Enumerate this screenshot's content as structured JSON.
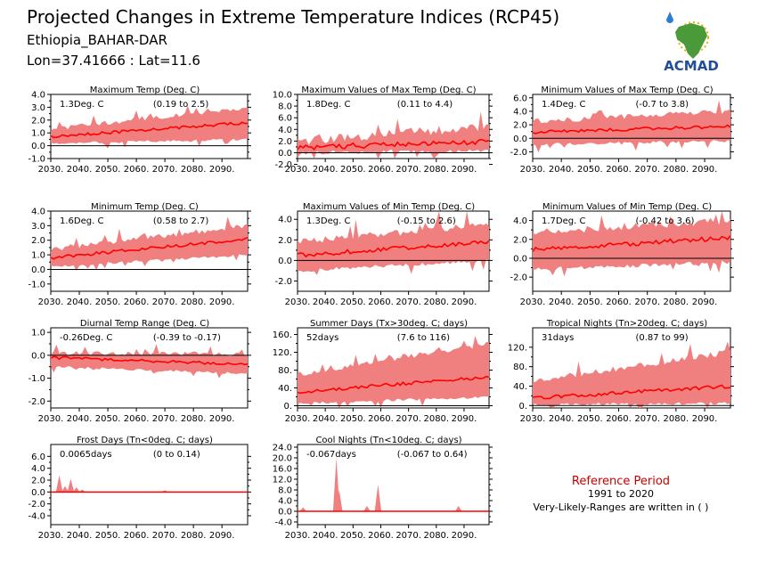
{
  "header": {
    "title": "Projected Changes in Extreme Temperature Indices (RCP45)",
    "location": "Ethiopia_BAHAR-DAR",
    "coords": "Lon=37.41666 : Lat=11.6"
  },
  "logo": {
    "text": "ACMAD",
    "colors": {
      "africa": "#4a9a3a",
      "text": "#1f4e9a",
      "sun": "#e8b000",
      "drop": "#2a7fd0"
    }
  },
  "footer": {
    "reference_label": "Reference Period",
    "reference_years": "1991 to 2020",
    "ranges_note": "Very-Likely-Ranges are written in ( )"
  },
  "colors": {
    "band": "#f08080",
    "median": "#ff0000",
    "zero": "#000000",
    "reference": "#cc0000"
  },
  "chart_data": [
    {
      "type": "area",
      "title": "Maximum Temp (Deg. C)",
      "change": "1.3Deg. C",
      "range": "(0.19 to 2.5)",
      "x": [
        2030,
        2099
      ],
      "xticks": [
        "2030.",
        "2040.",
        "2050.",
        "2060.",
        "2070.",
        "2080.",
        "2090."
      ],
      "ylim": [
        -1.0,
        4.0
      ],
      "yticks": [
        "4.0",
        "3.0",
        "2.0",
        "1.0",
        "0.0",
        "-1.0"
      ],
      "ytick_values": [
        4,
        3,
        2,
        1,
        0,
        -1
      ],
      "median_start": 0.7,
      "median_end": 1.8,
      "band_low_start": 0.2,
      "band_low_end": 0.5,
      "band_high_start": 1.3,
      "band_high_end": 3.0,
      "noise": 0.35
    },
    {
      "type": "area",
      "title": "Maximum Values of Max Temp (Deg. C)",
      "change": "1.8Deg. C",
      "range": "(0.11 to 4.4)",
      "x": [
        2030,
        2099
      ],
      "xticks": [
        "2030.",
        "2040.",
        "2050.",
        "2060.",
        "2070.",
        "2080.",
        "2090."
      ],
      "ylim": [
        -1.0,
        10.0
      ],
      "yticks": [
        "10.0",
        "8.0",
        "6.0",
        "4.0",
        "2.0",
        "0.0",
        "-2.0"
      ],
      "ytick_values": [
        10,
        8,
        6,
        4,
        2,
        0,
        -2
      ],
      "median_start": 0.9,
      "median_end": 2.0,
      "band_low_start": 0.0,
      "band_low_end": 0.3,
      "band_high_start": 2.0,
      "band_high_end": 4.5,
      "noise": 1.6
    },
    {
      "type": "area",
      "title": "Minimum Values of Max Temp (Deg. C)",
      "change": "1.4Deg. C",
      "range": "(-0.7 to 3.8)",
      "x": [
        2030,
        2099
      ],
      "xticks": [
        "2030.",
        "2040.",
        "2050.",
        "2060.",
        "2070.",
        "2080.",
        "2090."
      ],
      "ylim": [
        -3.0,
        6.5
      ],
      "yticks": [
        "6.0",
        "4.0",
        "2.0",
        "0.0",
        "-2.0"
      ],
      "ytick_values": [
        6,
        4,
        2,
        0,
        -2
      ],
      "median_start": 0.9,
      "median_end": 1.8,
      "band_low_start": -0.9,
      "band_low_end": -0.4,
      "band_high_start": 2.5,
      "band_high_end": 4.0,
      "noise": 0.8
    },
    {
      "type": "area",
      "title": "Minimum Temp (Deg. C)",
      "change": "1.6Deg. C",
      "range": "(0.58 to 2.7)",
      "x": [
        2030,
        2099
      ],
      "xticks": [
        "2030.",
        "2040.",
        "2050.",
        "2060.",
        "2070.",
        "2080.",
        "2090."
      ],
      "ylim": [
        -1.5,
        4.0
      ],
      "yticks": [
        "4.0",
        "3.0",
        "2.0",
        "1.0",
        "0.0",
        "-1.0"
      ],
      "ytick_values": [
        4,
        3,
        2,
        1,
        0,
        -1
      ],
      "median_start": 0.8,
      "median_end": 2.1,
      "band_low_start": 0.2,
      "band_low_end": 1.0,
      "band_high_start": 1.4,
      "band_high_end": 3.0,
      "noise": 0.35
    },
    {
      "type": "area",
      "title": "Maximum Values of Min Temp (Deg. C)",
      "change": "1.3Deg. C",
      "range": "(-0.15 to 2.6)",
      "x": [
        2030,
        2099
      ],
      "xticks": [
        "2030.",
        "2040.",
        "2050.",
        "2060.",
        "2070.",
        "2080.",
        "2090."
      ],
      "ylim": [
        -3.0,
        4.8
      ],
      "yticks": [
        "4.0",
        "2.0",
        "0.0",
        "-2.0"
      ],
      "ytick_values": [
        4,
        2,
        0,
        -2
      ],
      "median_start": 0.5,
      "median_end": 1.8,
      "band_low_start": -1.0,
      "band_low_end": 0.0,
      "band_high_start": 1.8,
      "band_high_end": 3.5,
      "noise": 0.7
    },
    {
      "type": "area",
      "title": "Minimum Values of Min Temp (Deg. C)",
      "change": "1.7Deg. C",
      "range": "(-0.42 to 3.6)",
      "x": [
        2030,
        2099
      ],
      "xticks": [
        "2030.",
        "2040.",
        "2050.",
        "2060.",
        "2070.",
        "2080.",
        "2090."
      ],
      "ylim": [
        -3.5,
        5.0
      ],
      "yticks": [
        "4.0",
        "2.0",
        "0.0",
        "-2.0"
      ],
      "ytick_values": [
        4,
        2,
        0,
        -2
      ],
      "median_start": 0.9,
      "median_end": 2.2,
      "band_low_start": -1.2,
      "band_low_end": -0.4,
      "band_high_start": 2.8,
      "band_high_end": 4.0,
      "noise": 0.8
    },
    {
      "type": "area",
      "title": "Diurnal Temp Range (Deg. C)",
      "change": "-0.26Deg. C",
      "range": "(-0.39 to -0.17)",
      "x": [
        2030,
        2099
      ],
      "xticks": [
        "2030.",
        "2040.",
        "2050.",
        "2060.",
        "2070.",
        "2080.",
        "2090."
      ],
      "ylim": [
        -2.3,
        1.2
      ],
      "yticks": [
        "1.0",
        "0.0",
        "-1.0",
        "-2.0"
      ],
      "ytick_values": [
        1,
        0,
        -1,
        -2
      ],
      "median_start": -0.1,
      "median_end": -0.4,
      "band_low_start": -0.5,
      "band_low_end": -0.8,
      "band_high_start": 0.1,
      "band_high_end": 0.05,
      "noise": 0.2
    },
    {
      "type": "area",
      "title": "Summer Days (Tx>30deg. C; days)",
      "change": "52days",
      "range": "(7.6 to 116)",
      "x": [
        2030,
        2099
      ],
      "xticks": [
        "2030.",
        "2040.",
        "2050.",
        "2060.",
        "2070.",
        "2080.",
        "2090."
      ],
      "ylim": [
        -5,
        175
      ],
      "yticks": [
        "160.",
        "120.",
        "80.",
        "40.",
        "0."
      ],
      "ytick_values": [
        160,
        120,
        80,
        40,
        0
      ],
      "median_start": 30,
      "median_end": 65,
      "band_low_start": 5,
      "band_low_end": 20,
      "band_high_start": 70,
      "band_high_end": 140,
      "noise": 12
    },
    {
      "type": "area",
      "title": "Tropical Nights (Tn>20deg. C; days)",
      "change": "31days",
      "range": "(0.87 to 99)",
      "x": [
        2030,
        2099
      ],
      "xticks": [
        "2030.",
        "2040.",
        "2050.",
        "2060.",
        "2070.",
        "2080.",
        "2090."
      ],
      "ylim": [
        -5,
        160
      ],
      "yticks": [
        "120.",
        "80.",
        "40.",
        "0."
      ],
      "ytick_values": [
        120,
        80,
        40,
        0
      ],
      "median_start": 15,
      "median_end": 40,
      "band_low_start": 2,
      "band_low_end": 5,
      "band_high_start": 50,
      "band_high_end": 110,
      "noise": 12
    },
    {
      "type": "area",
      "title": "Frost Days (Tn<0deg. C; days)",
      "change": "0.0065days",
      "range": "(0 to 0.14)",
      "x": [
        2030,
        2099
      ],
      "xticks": [
        "2030.",
        "2040.",
        "2050.",
        "2060.",
        "2070.",
        "2080.",
        "2090."
      ],
      "ylim": [
        -5.5,
        8.0
      ],
      "yticks": [
        "6.0",
        "4.0",
        "2.0",
        "0.0",
        "-2.0",
        "-4.0"
      ],
      "ytick_values": [
        6,
        4,
        2,
        0,
        -2,
        -4
      ],
      "median_start": 0,
      "median_end": 0,
      "band_low_start": 0,
      "band_low_end": 0,
      "band_high_start": 0,
      "band_high_end": 0,
      "noise": 0,
      "spikes": [
        [
          2033,
          2.8
        ],
        [
          2035,
          1.0
        ],
        [
          2037,
          2.2
        ],
        [
          2039,
          0.8
        ],
        [
          2041,
          0.4
        ],
        [
          2070,
          0.3
        ]
      ]
    },
    {
      "type": "area",
      "title": "Cool Nights (Tn<10deg. C; days)",
      "change": "-0.067days",
      "range": "(-0.067 to 0.64)",
      "x": [
        2030,
        2099
      ],
      "xticks": [
        "2030.",
        "2040.",
        "2050.",
        "2060.",
        "2070.",
        "2080.",
        "2090."
      ],
      "ylim": [
        -5.0,
        25.0
      ],
      "yticks": [
        "24.0",
        "20.0",
        "16.0",
        "12.0",
        "8.0",
        "4.0",
        "0.0",
        "-4.0"
      ],
      "ytick_values": [
        24,
        20,
        16,
        12,
        8,
        4,
        0,
        -4
      ],
      "median_start": 0,
      "median_end": 0,
      "band_low_start": 0,
      "band_low_end": 0,
      "band_high_start": 0,
      "band_high_end": 0,
      "noise": 0,
      "spikes": [
        [
          2032,
          1.5
        ],
        [
          2044,
          20
        ],
        [
          2045,
          8
        ],
        [
          2055,
          2
        ],
        [
          2059,
          10
        ],
        [
          2088,
          2
        ]
      ]
    }
  ]
}
